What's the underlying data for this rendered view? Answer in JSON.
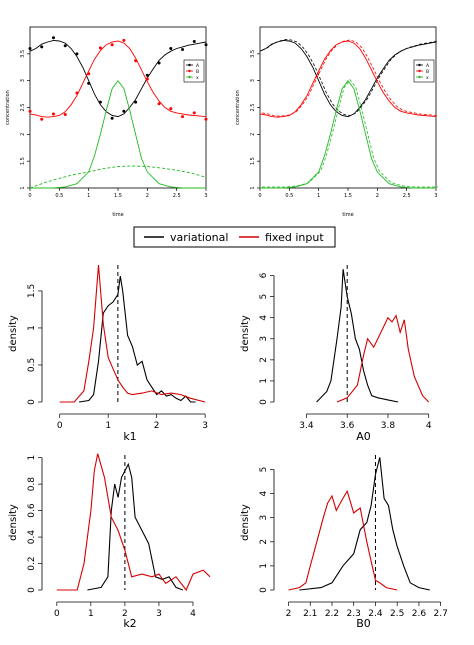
{
  "legend_main": {
    "items": [
      {
        "label": "variational",
        "color": "#000000"
      },
      {
        "label": "fixed input",
        "color": "#d40000"
      }
    ]
  },
  "chart_data": [
    {
      "type": "line",
      "panel": "top-left",
      "xlabel": "time",
      "ylabel": "concentration",
      "xlim": [
        0,
        3
      ],
      "ylim": [
        1,
        4
      ],
      "xticks": [
        0,
        0.5,
        1,
        1.5,
        2,
        2.5,
        3
      ],
      "yticks": [
        1,
        1.5,
        2,
        2.5,
        3,
        3.5
      ],
      "legend": "right",
      "legend_labels": [
        "A",
        "B",
        "x"
      ],
      "colors": [
        "#000000",
        "#ff0000",
        "#22bb22"
      ],
      "series": [
        {
          "name": "A",
          "x": [
            0,
            0.1,
            0.2,
            0.3,
            0.4,
            0.5,
            0.6,
            0.7,
            0.8,
            0.9,
            1.0,
            1.1,
            1.2,
            1.3,
            1.4,
            1.5,
            1.6,
            1.7,
            1.8,
            1.9,
            2.0,
            2.1,
            2.2,
            2.3,
            2.4,
            2.5,
            2.6,
            2.7,
            2.8,
            2.9,
            3.0
          ],
          "y": [
            3.55,
            3.6,
            3.68,
            3.72,
            3.75,
            3.74,
            3.7,
            3.6,
            3.45,
            3.25,
            3.0,
            2.75,
            2.55,
            2.42,
            2.35,
            2.33,
            2.38,
            2.5,
            2.65,
            2.85,
            3.05,
            3.22,
            3.38,
            3.48,
            3.55,
            3.6,
            3.63,
            3.66,
            3.68,
            3.7,
            3.72
          ]
        },
        {
          "name": "B",
          "x": [
            0,
            0.1,
            0.2,
            0.3,
            0.4,
            0.5,
            0.6,
            0.7,
            0.8,
            0.9,
            1.0,
            1.1,
            1.2,
            1.3,
            1.4,
            1.5,
            1.6,
            1.7,
            1.8,
            1.9,
            2.0,
            2.1,
            2.2,
            2.3,
            2.4,
            2.5,
            2.6,
            2.7,
            2.8,
            2.9,
            3.0
          ],
          "y": [
            2.38,
            2.36,
            2.33,
            2.32,
            2.33,
            2.35,
            2.42,
            2.55,
            2.72,
            2.95,
            3.18,
            3.4,
            3.56,
            3.67,
            3.72,
            3.74,
            3.7,
            3.6,
            3.42,
            3.2,
            2.98,
            2.78,
            2.62,
            2.5,
            2.43,
            2.4,
            2.38,
            2.36,
            2.35,
            2.34,
            2.33
          ]
        },
        {
          "name": "x",
          "x": [
            0,
            0.2,
            0.4,
            0.6,
            0.8,
            1.0,
            1.1,
            1.2,
            1.3,
            1.4,
            1.5,
            1.6,
            1.7,
            1.8,
            1.9,
            2.0,
            2.2,
            2.4,
            2.6,
            2.8,
            3.0
          ],
          "y": [
            1.0,
            1.0,
            1.0,
            1.02,
            1.08,
            1.3,
            1.6,
            2.0,
            2.45,
            2.85,
            3.0,
            2.85,
            2.45,
            2.0,
            1.55,
            1.3,
            1.08,
            1.02,
            1.0,
            1.0,
            1.0
          ]
        },
        {
          "name": "x dashed",
          "x": [
            0,
            0.25,
            0.5,
            0.75,
            1.0,
            1.25,
            1.5,
            1.75,
            2.0,
            2.25,
            2.5,
            2.75,
            3.0
          ],
          "y": [
            1.0,
            1.1,
            1.18,
            1.25,
            1.3,
            1.36,
            1.4,
            1.41,
            1.4,
            1.37,
            1.33,
            1.28,
            1.2
          ]
        }
      ]
    },
    {
      "type": "line",
      "panel": "top-right",
      "xlabel": "time",
      "ylabel": "concentration",
      "xlim": [
        0,
        3
      ],
      "ylim": [
        1,
        4
      ],
      "xticks": [
        0,
        0.5,
        1,
        1.5,
        2,
        2.5,
        3
      ],
      "yticks": [
        1,
        1.5,
        2,
        2.5,
        3,
        3.5
      ],
      "legend": "right",
      "legend_labels": [
        "A",
        "B",
        "x"
      ],
      "colors": [
        "#000000",
        "#ff0000",
        "#22bb22"
      ]
    },
    {
      "type": "line",
      "panel": "k1",
      "xlabel": "k1",
      "ylabel": "density",
      "xlim": [
        -0.2,
        3.1
      ],
      "ylim": [
        0,
        1.85
      ],
      "xticks": [
        0,
        1,
        2,
        3
      ],
      "yticks": [
        0,
        0.5,
        1,
        1.5
      ],
      "vline": 1.2,
      "series": [
        {
          "name": "variational",
          "x": [
            0.4,
            0.6,
            0.7,
            0.8,
            0.9,
            1.0,
            1.1,
            1.2,
            1.25,
            1.3,
            1.4,
            1.5,
            1.6,
            1.7,
            1.8,
            1.9,
            2.0,
            2.1,
            2.2,
            2.3,
            2.4,
            2.5,
            2.6,
            2.7,
            2.8
          ],
          "y": [
            0,
            0.02,
            0.1,
            0.55,
            1.2,
            1.3,
            1.35,
            1.45,
            1.7,
            1.5,
            0.9,
            0.75,
            0.5,
            0.55,
            0.3,
            0.2,
            0.1,
            0.15,
            0.08,
            0.1,
            0.05,
            0.02,
            0.08,
            0.0,
            0.0
          ]
        },
        {
          "name": "fixed input",
          "x": [
            0.0,
            0.3,
            0.5,
            0.6,
            0.7,
            0.8,
            0.9,
            1.0,
            1.1,
            1.2,
            1.3,
            1.4,
            1.5,
            1.7,
            1.9,
            2.1,
            2.3,
            2.5,
            2.7,
            3.0
          ],
          "y": [
            0,
            0.0,
            0.15,
            0.55,
            1.0,
            1.85,
            1.05,
            0.6,
            0.45,
            0.3,
            0.2,
            0.12,
            0.1,
            0.12,
            0.15,
            0.1,
            0.12,
            0.1,
            0.05,
            0.0
          ]
        }
      ]
    },
    {
      "type": "line",
      "panel": "A0",
      "xlabel": "A0",
      "ylabel": "density",
      "xlim": [
        3.28,
        4.08
      ],
      "ylim": [
        0,
        6.5
      ],
      "xticks": [
        3.4,
        3.6,
        3.8,
        4.0
      ],
      "yticks": [
        0,
        1,
        2,
        3,
        4,
        5,
        6
      ],
      "vline": 3.6,
      "series": [
        {
          "name": "variational",
          "x": [
            3.45,
            3.5,
            3.52,
            3.55,
            3.57,
            3.58,
            3.6,
            3.62,
            3.64,
            3.66,
            3.68,
            3.7,
            3.72,
            3.75,
            3.8,
            3.85
          ],
          "y": [
            0,
            0.5,
            1.0,
            3.0,
            4.5,
            6.3,
            5.0,
            4.2,
            3.0,
            2.5,
            1.5,
            0.8,
            0.3,
            0.2,
            0.1,
            0
          ]
        },
        {
          "name": "fixed input",
          "x": [
            3.55,
            3.6,
            3.65,
            3.68,
            3.7,
            3.73,
            3.76,
            3.78,
            3.8,
            3.82,
            3.84,
            3.86,
            3.88,
            3.9,
            3.93,
            3.97,
            4.0
          ],
          "y": [
            0,
            0.2,
            0.8,
            2.2,
            3.0,
            2.6,
            3.2,
            3.6,
            4.0,
            3.8,
            4.1,
            3.3,
            3.9,
            2.5,
            1.2,
            0.3,
            0
          ]
        }
      ]
    },
    {
      "type": "line",
      "panel": "k2",
      "xlabel": "k2",
      "ylabel": "density",
      "xlim": [
        -0.2,
        4.5
      ],
      "ylim": [
        0,
        1.02
      ],
      "xticks": [
        0,
        1,
        2,
        3,
        4
      ],
      "yticks": [
        0,
        0.2,
        0.4,
        0.6,
        0.8,
        1.0
      ],
      "vline": 2.0,
      "series": [
        {
          "name": "variational",
          "x": [
            0.9,
            1.3,
            1.5,
            1.6,
            1.7,
            1.8,
            1.9,
            2.0,
            2.1,
            2.2,
            2.3,
            2.5,
            2.7,
            2.9,
            3.1,
            3.3,
            3.5,
            3.7
          ],
          "y": [
            0,
            0.02,
            0.1,
            0.6,
            0.8,
            0.7,
            0.85,
            0.9,
            0.95,
            0.85,
            0.55,
            0.45,
            0.35,
            0.1,
            0.08,
            0.1,
            0.02,
            0
          ]
        },
        {
          "name": "fixed input",
          "x": [
            0.0,
            0.6,
            0.8,
            1.0,
            1.1,
            1.2,
            1.4,
            1.6,
            1.8,
            2.0,
            2.2,
            2.5,
            2.8,
            3.0,
            3.2,
            3.5,
            3.8,
            4.0,
            4.3,
            4.5
          ],
          "y": [
            0,
            0.0,
            0.2,
            0.6,
            0.9,
            1.03,
            0.85,
            0.55,
            0.45,
            0.3,
            0.1,
            0.12,
            0.1,
            0.12,
            0.05,
            0.1,
            0.0,
            0.12,
            0.15,
            0.1
          ]
        }
      ]
    },
    {
      "type": "line",
      "panel": "B0",
      "xlabel": "B0",
      "ylabel": "density",
      "xlim": [
        1.97,
        2.72
      ],
      "ylim": [
        0,
        5.6
      ],
      "xticks": [
        2.0,
        2.1,
        2.2,
        2.3,
        2.4,
        2.5,
        2.6,
        2.7
      ],
      "yticks": [
        0,
        1,
        2,
        3,
        4,
        5
      ],
      "vline": 2.4,
      "series": [
        {
          "name": "variational",
          "x": [
            2.05,
            2.15,
            2.2,
            2.25,
            2.3,
            2.33,
            2.36,
            2.38,
            2.4,
            2.42,
            2.44,
            2.46,
            2.48,
            2.5,
            2.53,
            2.56,
            2.6,
            2.65
          ],
          "y": [
            0,
            0.1,
            0.3,
            1.0,
            1.5,
            2.5,
            2.8,
            3.5,
            4.8,
            5.5,
            3.8,
            3.5,
            2.5,
            1.8,
            1.0,
            0.3,
            0.1,
            0
          ]
        },
        {
          "name": "fixed input",
          "x": [
            2.0,
            2.05,
            2.08,
            2.1,
            2.13,
            2.16,
            2.18,
            2.2,
            2.22,
            2.25,
            2.27,
            2.3,
            2.33,
            2.36,
            2.38,
            2.4,
            2.42,
            2.45,
            2.5
          ],
          "y": [
            0,
            0.1,
            0.3,
            1.0,
            2.0,
            3.0,
            3.6,
            3.9,
            3.3,
            3.8,
            4.1,
            3.2,
            3.4,
            2.0,
            1.2,
            0.4,
            0.3,
            0.1,
            0
          ]
        }
      ]
    }
  ]
}
